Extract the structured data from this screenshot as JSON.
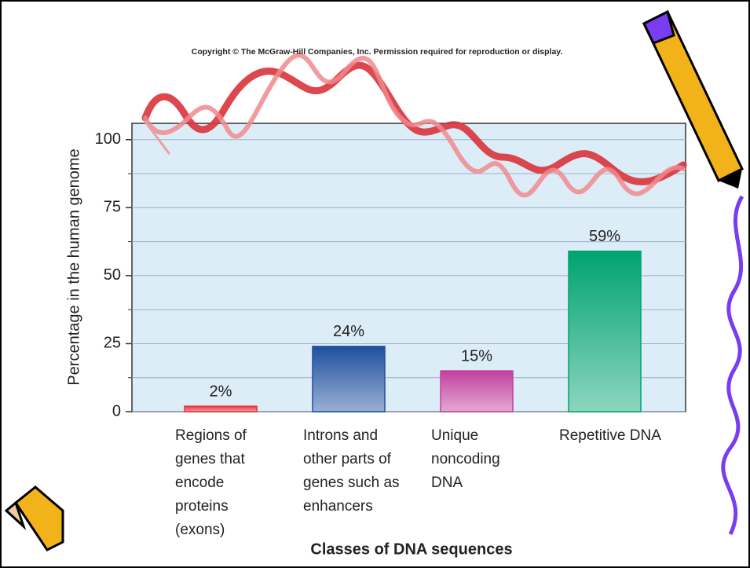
{
  "chart_data": {
    "type": "bar",
    "title": "Copyright © The McGraw-Hill Companies, Inc. Permission required for reproduction or display.",
    "x_label": "Classes of DNA sequences",
    "y_label": "Percentage in the human genome",
    "categories": [
      "Regions of genes that encode proteins (exons)",
      "Introns and other parts of genes such as enhancers",
      "Unique noncoding DNA",
      "Repetitive DNA"
    ],
    "values": [
      2,
      24,
      15,
      59
    ],
    "value_labels": [
      "2%",
      "24%",
      "15%",
      "59%"
    ],
    "colors": [
      "#e8333a",
      "#1f4f9f",
      "#c2409f",
      "#00a36f"
    ],
    "ylim": [
      0,
      106
    ],
    "yticks": [
      0,
      25,
      50,
      75,
      100
    ],
    "yminor": [
      12.5,
      37.5,
      62.5,
      87.5
    ],
    "grid": true
  }
}
